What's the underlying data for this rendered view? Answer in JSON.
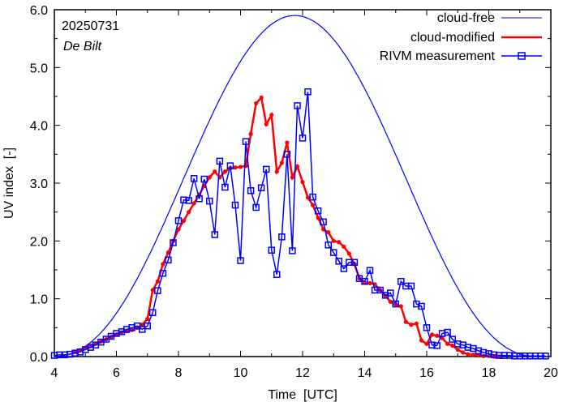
{
  "chart_data": {
    "type": "line",
    "xlabel": "Time  [UTC]",
    "ylabel": "UV index  [-]",
    "xlim": [
      4,
      20
    ],
    "ylim": [
      0,
      6
    ],
    "xticks": [
      4,
      6,
      8,
      10,
      12,
      14,
      16,
      18,
      20
    ],
    "xtick_labels": [
      "4",
      "6",
      "8",
      "10",
      "12",
      "14",
      "16",
      "18",
      "20"
    ],
    "yticks": [
      0,
      1,
      2,
      3,
      4,
      5,
      6
    ],
    "ytick_labels": [
      "0.0",
      "1.0",
      "2.0",
      "3.0",
      "4.0",
      "5.0",
      "6.0"
    ],
    "annotations": [
      "20250731",
      "De Bilt"
    ],
    "legend_position": "top-right",
    "series": [
      {
        "name": "cloud-free",
        "color": "#0000ff",
        "style": "line",
        "peak_time": 11.75,
        "peak": 5.9,
        "start": 4.1,
        "end": 19.8
      },
      {
        "name": "cloud-modified",
        "color": "#ff0000",
        "style": "line-dots",
        "x": [
          4.67,
          4.83,
          5.0,
          5.17,
          5.33,
          5.5,
          5.67,
          5.83,
          6.0,
          6.17,
          6.33,
          6.5,
          6.67,
          6.83,
          7.0,
          7.17,
          7.33,
          7.5,
          7.67,
          7.83,
          8.0,
          8.17,
          8.33,
          8.5,
          8.67,
          8.83,
          9.0,
          9.17,
          9.33,
          9.5,
          9.67,
          9.83,
          10.0,
          10.17,
          10.33,
          10.5,
          10.67,
          10.83,
          11.0,
          11.17,
          11.33,
          11.5,
          11.67,
          11.83,
          12.0,
          12.17,
          12.33,
          12.5,
          12.67,
          12.83,
          13.0,
          13.17,
          13.33,
          13.5,
          13.67,
          13.83,
          14.0,
          14.17,
          14.33,
          14.5,
          14.67,
          14.83,
          15.0,
          15.17,
          15.33,
          15.5,
          15.67,
          15.83,
          16.0,
          16.17,
          16.33,
          16.5,
          16.67,
          16.83,
          17.0,
          17.17,
          17.33,
          17.5,
          17.67,
          17.83,
          18.0,
          18.17,
          18.33
        ],
        "values": [
          0.08,
          0.11,
          0.15,
          0.18,
          0.22,
          0.26,
          0.3,
          0.34,
          0.38,
          0.42,
          0.44,
          0.46,
          0.5,
          0.55,
          0.65,
          1.15,
          1.3,
          1.6,
          1.8,
          2.0,
          2.2,
          2.35,
          2.5,
          2.65,
          2.8,
          2.95,
          3.1,
          3.2,
          3.1,
          3.2,
          3.26,
          3.27,
          3.28,
          3.3,
          3.85,
          4.38,
          4.48,
          4.02,
          4.18,
          3.2,
          3.35,
          3.7,
          3.1,
          3.29,
          3.02,
          2.75,
          2.62,
          2.4,
          2.2,
          2.15,
          2.0,
          1.98,
          1.9,
          1.78,
          1.6,
          1.35,
          1.28,
          1.27,
          1.25,
          1.15,
          1.05,
          0.95,
          0.9,
          0.87,
          0.6,
          0.55,
          0.57,
          0.28,
          0.22,
          0.38,
          0.36,
          0.32,
          0.22,
          0.19,
          0.12,
          0.07,
          0.04,
          0.03,
          0.02,
          0.01,
          0.01,
          0.0,
          0.0
        ]
      },
      {
        "name": "RIVM measurement",
        "color": "#0000ff",
        "style": "line-squares",
        "x": [
          4.0,
          4.17,
          4.33,
          4.5,
          4.67,
          4.83,
          5.0,
          5.17,
          5.33,
          5.5,
          5.67,
          5.83,
          6.0,
          6.17,
          6.33,
          6.5,
          6.67,
          6.83,
          7.0,
          7.17,
          7.33,
          7.5,
          7.67,
          7.83,
          8.0,
          8.17,
          8.33,
          8.5,
          8.67,
          8.83,
          9.0,
          9.17,
          9.33,
          9.5,
          9.67,
          9.83,
          10.0,
          10.17,
          10.33,
          10.5,
          10.67,
          10.83,
          11.0,
          11.17,
          11.33,
          11.5,
          11.67,
          11.83,
          12.0,
          12.17,
          12.33,
          12.5,
          12.67,
          12.83,
          13.0,
          13.17,
          13.33,
          13.5,
          13.67,
          13.83,
          14.0,
          14.17,
          14.33,
          14.5,
          14.67,
          14.83,
          15.0,
          15.17,
          15.33,
          15.5,
          15.67,
          15.83,
          16.0,
          16.17,
          16.33,
          16.5,
          16.67,
          16.83,
          17.0,
          17.17,
          17.33,
          17.5,
          17.67,
          17.83,
          18.0,
          18.17,
          18.33,
          18.5,
          18.67,
          18.83,
          19.0,
          19.17,
          19.33,
          19.5,
          19.67,
          19.83
        ],
        "values": [
          0.02,
          0.03,
          0.03,
          0.04,
          0.06,
          0.08,
          0.12,
          0.16,
          0.2,
          0.25,
          0.3,
          0.35,
          0.4,
          0.43,
          0.47,
          0.5,
          0.53,
          0.47,
          0.53,
          0.76,
          1.14,
          1.44,
          1.67,
          1.97,
          2.35,
          2.71,
          2.7,
          3.08,
          2.73,
          3.07,
          2.69,
          2.11,
          3.38,
          2.93,
          3.3,
          2.62,
          1.66,
          3.72,
          2.87,
          2.58,
          2.92,
          3.24,
          1.84,
          1.42,
          2.07,
          3.5,
          1.83,
          4.34,
          3.78,
          4.58,
          2.76,
          2.52,
          2.33,
          1.93,
          1.8,
          1.65,
          1.52,
          1.63,
          1.63,
          1.35,
          1.3,
          1.49,
          1.15,
          1.15,
          1.06,
          1.1,
          0.91,
          1.3,
          1.22,
          1.22,
          0.91,
          0.87,
          0.5,
          0.2,
          0.19,
          0.4,
          0.42,
          0.3,
          0.22,
          0.2,
          0.16,
          0.14,
          0.1,
          0.07,
          0.05,
          0.03,
          0.02,
          0.02,
          0.02,
          0.01,
          0.01,
          0.01,
          0.01,
          0.01,
          0.01,
          0.01
        ]
      }
    ]
  }
}
